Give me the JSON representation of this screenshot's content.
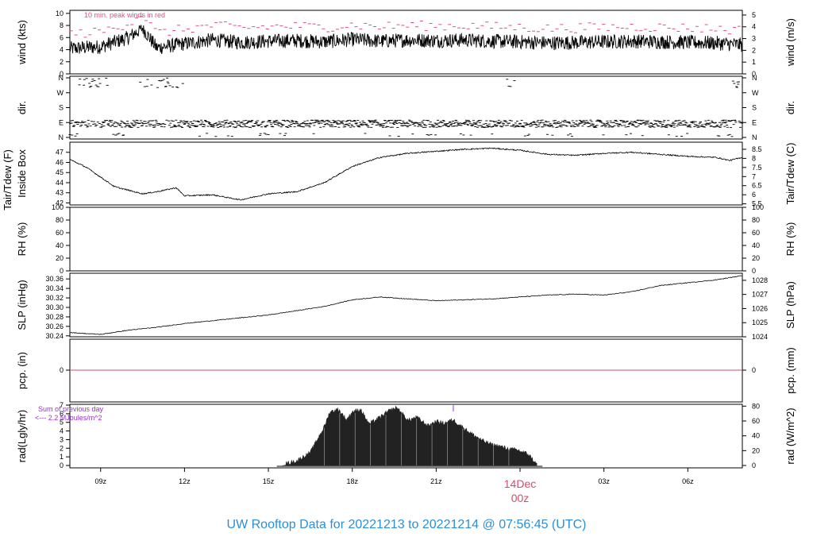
{
  "title": "UW Rooftop Data for 20221213  to  20221214 @ 07:56:45  (UTC)",
  "colors": {
    "title": "#2a8fd6",
    "peak": "#e0507a",
    "date_label": "#d64a6a",
    "rad_note": "#9b30d0",
    "pcp_line": "#d64a6a",
    "trace": "#000000",
    "rad_fill": "#222222"
  },
  "x_axis": {
    "ticks": [
      "09z",
      "12z",
      "15z",
      "18z",
      "21z",
      "00z",
      "03z",
      "06z"
    ],
    "date_label": "14Dec",
    "date_sub": "00z",
    "start_hour": 7.9,
    "end_hour": 31.95
  },
  "chart_data": [
    {
      "type": "line",
      "ylabel": "wind (kts)",
      "ylabel_right": "wind (m/s)",
      "annotation": "10 min. peak winds in red",
      "ylim": [
        0,
        10.5
      ],
      "yticks": [
        "0",
        "2",
        "4",
        "6",
        "8",
        "10"
      ],
      "ylim_right": [
        0,
        5.4
      ],
      "yticks_right": [
        "0",
        "1",
        "2",
        "3",
        "4",
        "5"
      ],
      "series": [
        {
          "x": [
            8.0,
            9.0,
            10.0,
            10.5,
            11.0,
            12.0,
            13.0,
            14.0,
            15.0,
            16.0,
            17.0,
            18.0,
            19.0,
            20.0,
            21.0,
            22.0,
            23.0,
            24.0,
            25.0,
            26.0,
            27.0,
            28.0,
            29.0,
            30.0,
            31.0,
            31.9
          ],
          "y": [
            4.2,
            4.5,
            6.0,
            7.6,
            4.3,
            5.0,
            5.6,
            5.2,
            5.4,
            5.5,
            5.3,
            5.7,
            5.4,
            5.6,
            5.5,
            5.6,
            5.4,
            5.3,
            5.1,
            5.2,
            5.3,
            5.4,
            5.3,
            5.2,
            5.1,
            4.8
          ]
        }
      ]
    },
    {
      "type": "scatter",
      "ylabel": "dir.",
      "ylabel_right": "dir.",
      "yticks": [
        "N",
        "E",
        "S",
        "W",
        "N"
      ],
      "ylim": [
        0,
        360
      ]
    },
    {
      "type": "line",
      "ylabel": "Tair/Tdew (F)",
      "ylabel2": "Inside Box",
      "ylabel_right": "Tair/Tdew (C)",
      "ylim": [
        41.8,
        48.0
      ],
      "yticks": [
        "42",
        "43",
        "44",
        "45",
        "46",
        "47"
      ],
      "ylim_right": [
        5.44,
        8.89
      ],
      "yticks_right": [
        "5.5",
        "6",
        "6.5",
        "7",
        "7.5",
        "8",
        "8.5"
      ],
      "series": [
        {
          "x": [
            7.9,
            8.5,
            9.5,
            10.5,
            11.0,
            11.7,
            12.0,
            13.0,
            14.0,
            15.0,
            16.0,
            17.0,
            18.0,
            19.0,
            20.0,
            21.0,
            22.0,
            23.0,
            24.0,
            25.0,
            26.0,
            27.0,
            28.0,
            29.0,
            30.0,
            31.0,
            31.5,
            31.95
          ],
          "y": [
            46.3,
            45.5,
            43.6,
            42.9,
            43.1,
            43.5,
            42.7,
            42.8,
            42.3,
            42.9,
            43.1,
            44.0,
            45.6,
            46.5,
            46.9,
            47.1,
            47.3,
            47.4,
            47.2,
            46.8,
            46.7,
            46.9,
            47.0,
            46.8,
            46.6,
            46.5,
            46.2,
            46.5
          ]
        }
      ]
    },
    {
      "type": "line",
      "ylabel": "RH (%)",
      "ylabel_right": "RH (%)",
      "ylim": [
        0,
        100
      ],
      "yticks": [
        "0",
        "20",
        "40",
        "60",
        "80",
        "100"
      ],
      "yticks_right": [
        "0",
        "20",
        "40",
        "60",
        "80",
        "100"
      ]
    },
    {
      "type": "line",
      "ylabel": "SLP (inHg)",
      "ylabel_right": "SLP (hPa)",
      "ylim": [
        30.238,
        30.372
      ],
      "yticks": [
        "30.24",
        "30.26",
        "30.28",
        "30.30",
        "30.32",
        "30.34",
        "30.36"
      ],
      "ylim_right": [
        1024.0,
        1028.5
      ],
      "yticks_right": [
        "1024",
        "1025",
        "1026",
        "1027",
        "1028"
      ],
      "series": [
        {
          "x": [
            7.9,
            9.0,
            10.0,
            11.0,
            12.0,
            13.0,
            14.0,
            15.0,
            16.0,
            17.0,
            18.0,
            19.0,
            20.0,
            21.0,
            22.0,
            23.0,
            24.0,
            25.0,
            26.0,
            27.0,
            28.0,
            29.0,
            30.0,
            31.0,
            31.95
          ],
          "y": [
            30.247,
            30.243,
            30.252,
            30.258,
            30.266,
            30.272,
            30.278,
            30.284,
            30.293,
            30.302,
            30.316,
            30.322,
            30.318,
            30.314,
            30.316,
            30.318,
            30.322,
            30.326,
            30.328,
            30.326,
            30.333,
            30.346,
            30.352,
            30.358,
            30.367
          ]
        }
      ]
    },
    {
      "type": "line",
      "ylabel": "pcp. (in)",
      "ylabel_right": "pcp. (mm)",
      "yticks": [
        "0"
      ],
      "yticks_right": [
        "0"
      ],
      "values": [
        0
      ]
    },
    {
      "type": "area",
      "ylabel": "rad(Lgly/hr)",
      "ylabel_right": "rad (W/m^2)",
      "annotation": [
        "Sum of previous day",
        "<--- 2.2  MJoules/m^2"
      ],
      "ylim": [
        0,
        7
      ],
      "yticks": [
        "0",
        "1",
        "2",
        "3",
        "4",
        "5",
        "6",
        "7"
      ],
      "ylim_right": [
        0,
        81.4
      ],
      "yticks_right": [
        "0",
        "20",
        "40",
        "60",
        "80"
      ],
      "series": [
        {
          "x": [
            15.5,
            16.0,
            16.5,
            17.0,
            17.2,
            17.5,
            17.8,
            18.0,
            18.3,
            18.6,
            19.0,
            19.3,
            19.6,
            20.0,
            20.3,
            20.7,
            21.0,
            21.3,
            21.6,
            22.0,
            22.3,
            22.7,
            23.0,
            23.3,
            23.6,
            23.9,
            24.3,
            24.6
          ],
          "y": [
            0.1,
            0.5,
            1.5,
            4.5,
            6.2,
            6.5,
            5.3,
            6.2,
            6.5,
            4.8,
            5.6,
            6.3,
            6.7,
            5.2,
            5.6,
            4.6,
            5.1,
            4.9,
            5.3,
            4.3,
            3.6,
            2.8,
            2.4,
            2.2,
            1.9,
            1.8,
            1.3,
            0.1
          ]
        }
      ]
    }
  ]
}
